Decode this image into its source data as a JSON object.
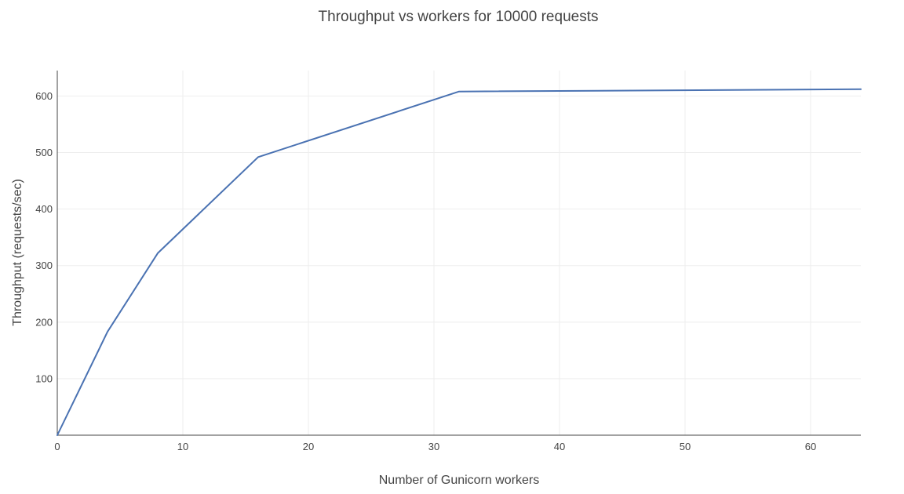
{
  "chart_data": {
    "type": "line",
    "title": "Throughput  vs workers for 10000 requests",
    "xlabel": "Number of Gunicorn workers",
    "ylabel": "Throughput (requests/sec)",
    "xlim": [
      0,
      64
    ],
    "ylim": [
      0,
      645
    ],
    "x_ticks": [
      0,
      10,
      20,
      30,
      40,
      50,
      60
    ],
    "y_ticks": [
      100,
      200,
      300,
      400,
      500,
      600
    ],
    "grid": true,
    "series": [
      {
        "color": "#4a72b2",
        "x": [
          0,
          4,
          8,
          16,
          32,
          64
        ],
        "y": [
          0,
          183,
          322,
          492,
          608,
          612
        ]
      }
    ]
  }
}
